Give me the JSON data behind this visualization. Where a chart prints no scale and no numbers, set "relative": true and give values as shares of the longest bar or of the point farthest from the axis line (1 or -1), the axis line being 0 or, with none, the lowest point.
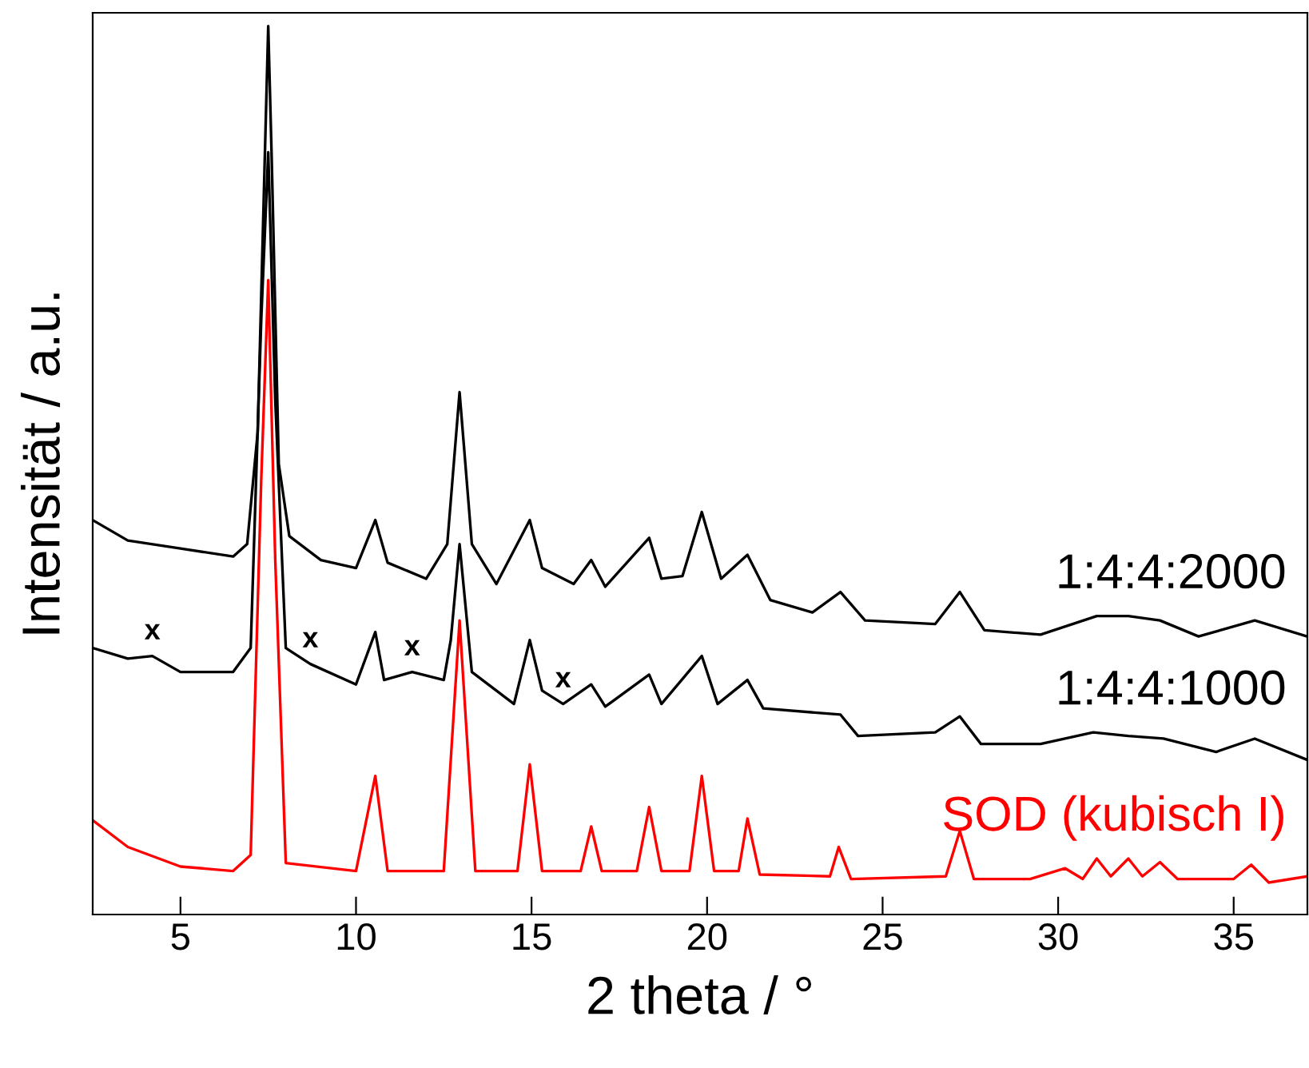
{
  "chart_data": {
    "type": "line",
    "xlabel": "2 theta / °",
    "ylabel": "Intensität / a.u.",
    "relative": true,
    "xlim": [
      2.5,
      37.1
    ],
    "xticks": [
      5,
      10,
      15,
      20,
      25,
      30,
      35
    ],
    "grid": false,
    "legend": false,
    "series": [
      {
        "name": "1:4:4:2000",
        "color": "#000000",
        "x": [
          2.5,
          3.5,
          5,
          6.5,
          6.9,
          7.2,
          7.4,
          7.5,
          7.6,
          7.8,
          8.1,
          9,
          10,
          10.55,
          10.9,
          12,
          12.6,
          12.95,
          13.3,
          14,
          14.95,
          15.3,
          16.2,
          16.7,
          17.1,
          18.35,
          18.7,
          19.3,
          19.85,
          20.4,
          21.15,
          21.8,
          23.0,
          23.8,
          24.5,
          26.5,
          27.2,
          27.9,
          29.5,
          31.1,
          32.0,
          32.9,
          34,
          35.6,
          37.1
        ],
        "values": [
          0.444,
          0.421,
          0.412,
          0.403,
          0.417,
          0.543,
          0.849,
          1.0,
          0.849,
          0.507,
          0.426,
          0.399,
          0.39,
          0.444,
          0.396,
          0.378,
          0.417,
          0.588,
          0.417,
          0.372,
          0.444,
          0.39,
          0.372,
          0.399,
          0.369,
          0.424,
          0.378,
          0.381,
          0.453,
          0.378,
          0.405,
          0.354,
          0.34,
          0.363,
          0.331,
          0.327,
          0.363,
          0.32,
          0.315,
          0.336,
          0.336,
          0.331,
          0.313,
          0.331,
          0.313
        ]
      },
      {
        "name": "1:4:4:1000",
        "color": "#000000",
        "x": [
          2.5,
          3.5,
          4.2,
          5,
          6.5,
          7.0,
          7.3,
          7.5,
          7.7,
          8.0,
          8.7,
          10,
          10.55,
          10.8,
          11.6,
          12.5,
          12.7,
          12.95,
          13.3,
          14.5,
          14.95,
          15.3,
          15.9,
          16.7,
          17.1,
          18.35,
          18.7,
          19.85,
          20.3,
          21.15,
          21.6,
          23.8,
          24.3,
          26.5,
          27.2,
          27.8,
          29.5,
          31.0,
          32.0,
          33,
          34.5,
          35.6,
          37.1
        ],
        "values": [
          0.3,
          0.288,
          0.291,
          0.273,
          0.273,
          0.3,
          0.669,
          0.858,
          0.579,
          0.3,
          0.282,
          0.259,
          0.318,
          0.264,
          0.273,
          0.264,
          0.309,
          0.417,
          0.273,
          0.237,
          0.309,
          0.252,
          0.237,
          0.259,
          0.234,
          0.27,
          0.237,
          0.291,
          0.237,
          0.264,
          0.232,
          0.225,
          0.201,
          0.205,
          0.223,
          0.192,
          0.192,
          0.205,
          0.201,
          0.198,
          0.183,
          0.198,
          0.174
        ]
      },
      {
        "name": "SOD (kubisch I)",
        "color": "#ff0000",
        "x": [
          2.5,
          3.5,
          5,
          6.5,
          7.0,
          7.3,
          7.5,
          7.7,
          8.0,
          10.0,
          10.55,
          10.9,
          12.5,
          12.95,
          13.4,
          14.6,
          14.95,
          15.3,
          16.4,
          16.7,
          17.0,
          18.0,
          18.35,
          18.7,
          19.5,
          19.85,
          20.2,
          20.9,
          21.15,
          21.5,
          23.5,
          23.75,
          24.1,
          26.8,
          27.2,
          27.6,
          29.2,
          30.2,
          30.7,
          31.1,
          31.5,
          32.0,
          32.4,
          32.9,
          33.4,
          35.0,
          35.5,
          36,
          37.1
        ],
        "values": [
          0.106,
          0.076,
          0.054,
          0.049,
          0.067,
          0.489,
          0.714,
          0.399,
          0.058,
          0.049,
          0.156,
          0.049,
          0.049,
          0.331,
          0.049,
          0.049,
          0.169,
          0.049,
          0.049,
          0.099,
          0.049,
          0.049,
          0.121,
          0.049,
          0.049,
          0.156,
          0.049,
          0.049,
          0.108,
          0.045,
          0.043,
          0.076,
          0.04,
          0.043,
          0.094,
          0.04,
          0.04,
          0.052,
          0.04,
          0.063,
          0.043,
          0.063,
          0.043,
          0.059,
          0.04,
          0.04,
          0.056,
          0.036,
          0.043
        ]
      }
    ],
    "annotations": [
      {
        "text": "x",
        "x": 4.2,
        "y": 0.291
      },
      {
        "text": "x",
        "x": 8.7,
        "y": 0.282
      },
      {
        "text": "x",
        "x": 11.6,
        "y": 0.273
      },
      {
        "text": "x",
        "x": 15.9,
        "y": 0.237
      }
    ]
  }
}
